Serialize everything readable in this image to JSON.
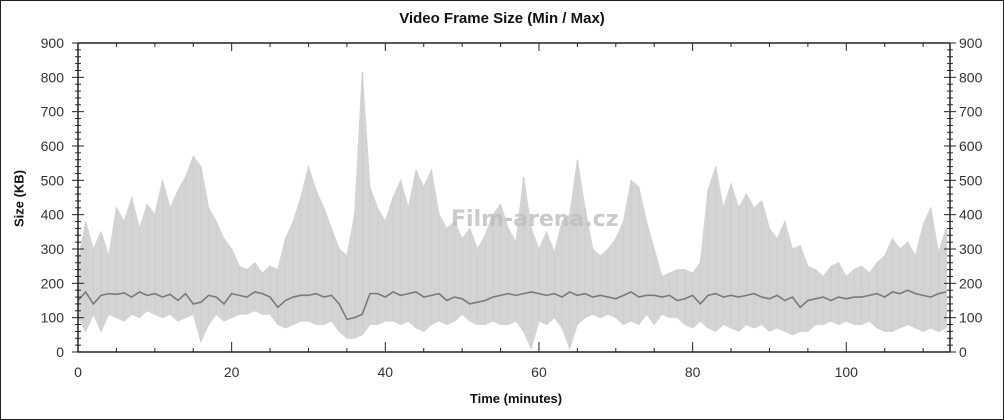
{
  "chart_data": {
    "type": "area",
    "title": "Video Frame Size (Min / Max)",
    "xlabel": "Time (minutes)",
    "ylabel": "Size (KB)",
    "xlim": [
      0,
      113.5
    ],
    "ylim": [
      0,
      900
    ],
    "xticks": [
      0,
      20,
      40,
      60,
      80,
      100
    ],
    "yticks": [
      0,
      100,
      200,
      300,
      400,
      500,
      600,
      700,
      800,
      900
    ],
    "grid": false,
    "legend": "none",
    "x": [
      0,
      1,
      2,
      3,
      4,
      5,
      6,
      7,
      8,
      9,
      10,
      11,
      12,
      13,
      14,
      15,
      16,
      17,
      18,
      19,
      20,
      21,
      22,
      23,
      24,
      25,
      26,
      27,
      28,
      29,
      30,
      31,
      32,
      33,
      34,
      35,
      36,
      37,
      38,
      39,
      40,
      41,
      42,
      43,
      44,
      45,
      46,
      47,
      48,
      49,
      50,
      51,
      52,
      53,
      54,
      55,
      56,
      57,
      58,
      59,
      60,
      61,
      62,
      63,
      64,
      65,
      66,
      67,
      68,
      69,
      70,
      71,
      72,
      73,
      74,
      75,
      76,
      77,
      78,
      79,
      80,
      81,
      82,
      83,
      84,
      85,
      86,
      87,
      88,
      89,
      90,
      91,
      92,
      93,
      94,
      95,
      96,
      97,
      98,
      99,
      100,
      101,
      102,
      103,
      104,
      105,
      106,
      107,
      108,
      109,
      110,
      111,
      112,
      113
    ],
    "series": [
      {
        "color": "#d4d4d4",
        "role": "max",
        "values": [
          260,
          380,
          300,
          350,
          280,
          420,
          380,
          450,
          360,
          430,
          400,
          500,
          420,
          470,
          510,
          570,
          540,
          420,
          380,
          330,
          300,
          250,
          240,
          260,
          230,
          250,
          240,
          330,
          380,
          450,
          540,
          470,
          420,
          360,
          300,
          280,
          400,
          815,
          480,
          420,
          380,
          450,
          500,
          420,
          530,
          480,
          530,
          400,
          360,
          380,
          330,
          360,
          300,
          340,
          400,
          430,
          360,
          320,
          510,
          360,
          300,
          350,
          290,
          380,
          400,
          560,
          420,
          300,
          280,
          300,
          330,
          380,
          500,
          480,
          380,
          300,
          220,
          230,
          240,
          240,
          230,
          260,
          470,
          540,
          420,
          490,
          420,
          460,
          420,
          440,
          360,
          330,
          380,
          300,
          310,
          250,
          240,
          220,
          250,
          260,
          220,
          240,
          250,
          230,
          260,
          280,
          330,
          300,
          320,
          280,
          370,
          420,
          290,
          360
        ]
      },
      {
        "color": "#d4d4d4",
        "role": "min",
        "values": [
          100,
          60,
          110,
          60,
          110,
          100,
          90,
          110,
          100,
          120,
          110,
          100,
          110,
          90,
          100,
          110,
          30,
          80,
          110,
          90,
          100,
          110,
          110,
          120,
          110,
          110,
          80,
          70,
          80,
          90,
          90,
          80,
          80,
          90,
          60,
          40,
          40,
          50,
          80,
          80,
          90,
          90,
          80,
          90,
          70,
          60,
          80,
          90,
          80,
          90,
          110,
          90,
          80,
          80,
          90,
          80,
          80,
          90,
          60,
          10,
          90,
          80,
          100,
          70,
          10,
          80,
          100,
          110,
          100,
          110,
          100,
          80,
          90,
          80,
          110,
          80,
          110,
          100,
          100,
          80,
          70,
          90,
          70,
          60,
          80,
          70,
          60,
          80,
          70,
          80,
          60,
          70,
          60,
          50,
          60,
          60,
          80,
          80,
          90,
          80,
          90,
          80,
          80,
          90,
          70,
          60,
          60,
          70,
          80,
          70,
          60,
          70,
          60,
          70
        ]
      },
      {
        "color": "#7a7a7a",
        "role": "line",
        "values": [
          150,
          175,
          140,
          165,
          170,
          168,
          172,
          160,
          175,
          165,
          170,
          160,
          168,
          150,
          170,
          140,
          145,
          165,
          160,
          140,
          170,
          165,
          160,
          175,
          170,
          160,
          130,
          150,
          160,
          165,
          165,
          170,
          160,
          165,
          140,
          95,
          100,
          110,
          170,
          170,
          160,
          175,
          165,
          170,
          175,
          160,
          165,
          170,
          150,
          160,
          155,
          140,
          145,
          150,
          160,
          165,
          170,
          165,
          170,
          175,
          170,
          165,
          170,
          160,
          175,
          165,
          170,
          160,
          165,
          160,
          155,
          165,
          175,
          160,
          165,
          165,
          160,
          165,
          150,
          155,
          165,
          140,
          165,
          170,
          160,
          165,
          160,
          165,
          170,
          160,
          155,
          165,
          150,
          160,
          130,
          150,
          155,
          160,
          150,
          160,
          155,
          160,
          160,
          165,
          170,
          160,
          175,
          170,
          180,
          170,
          165,
          160,
          170,
          175
        ]
      }
    ]
  },
  "watermark": "Film-arena.cz"
}
